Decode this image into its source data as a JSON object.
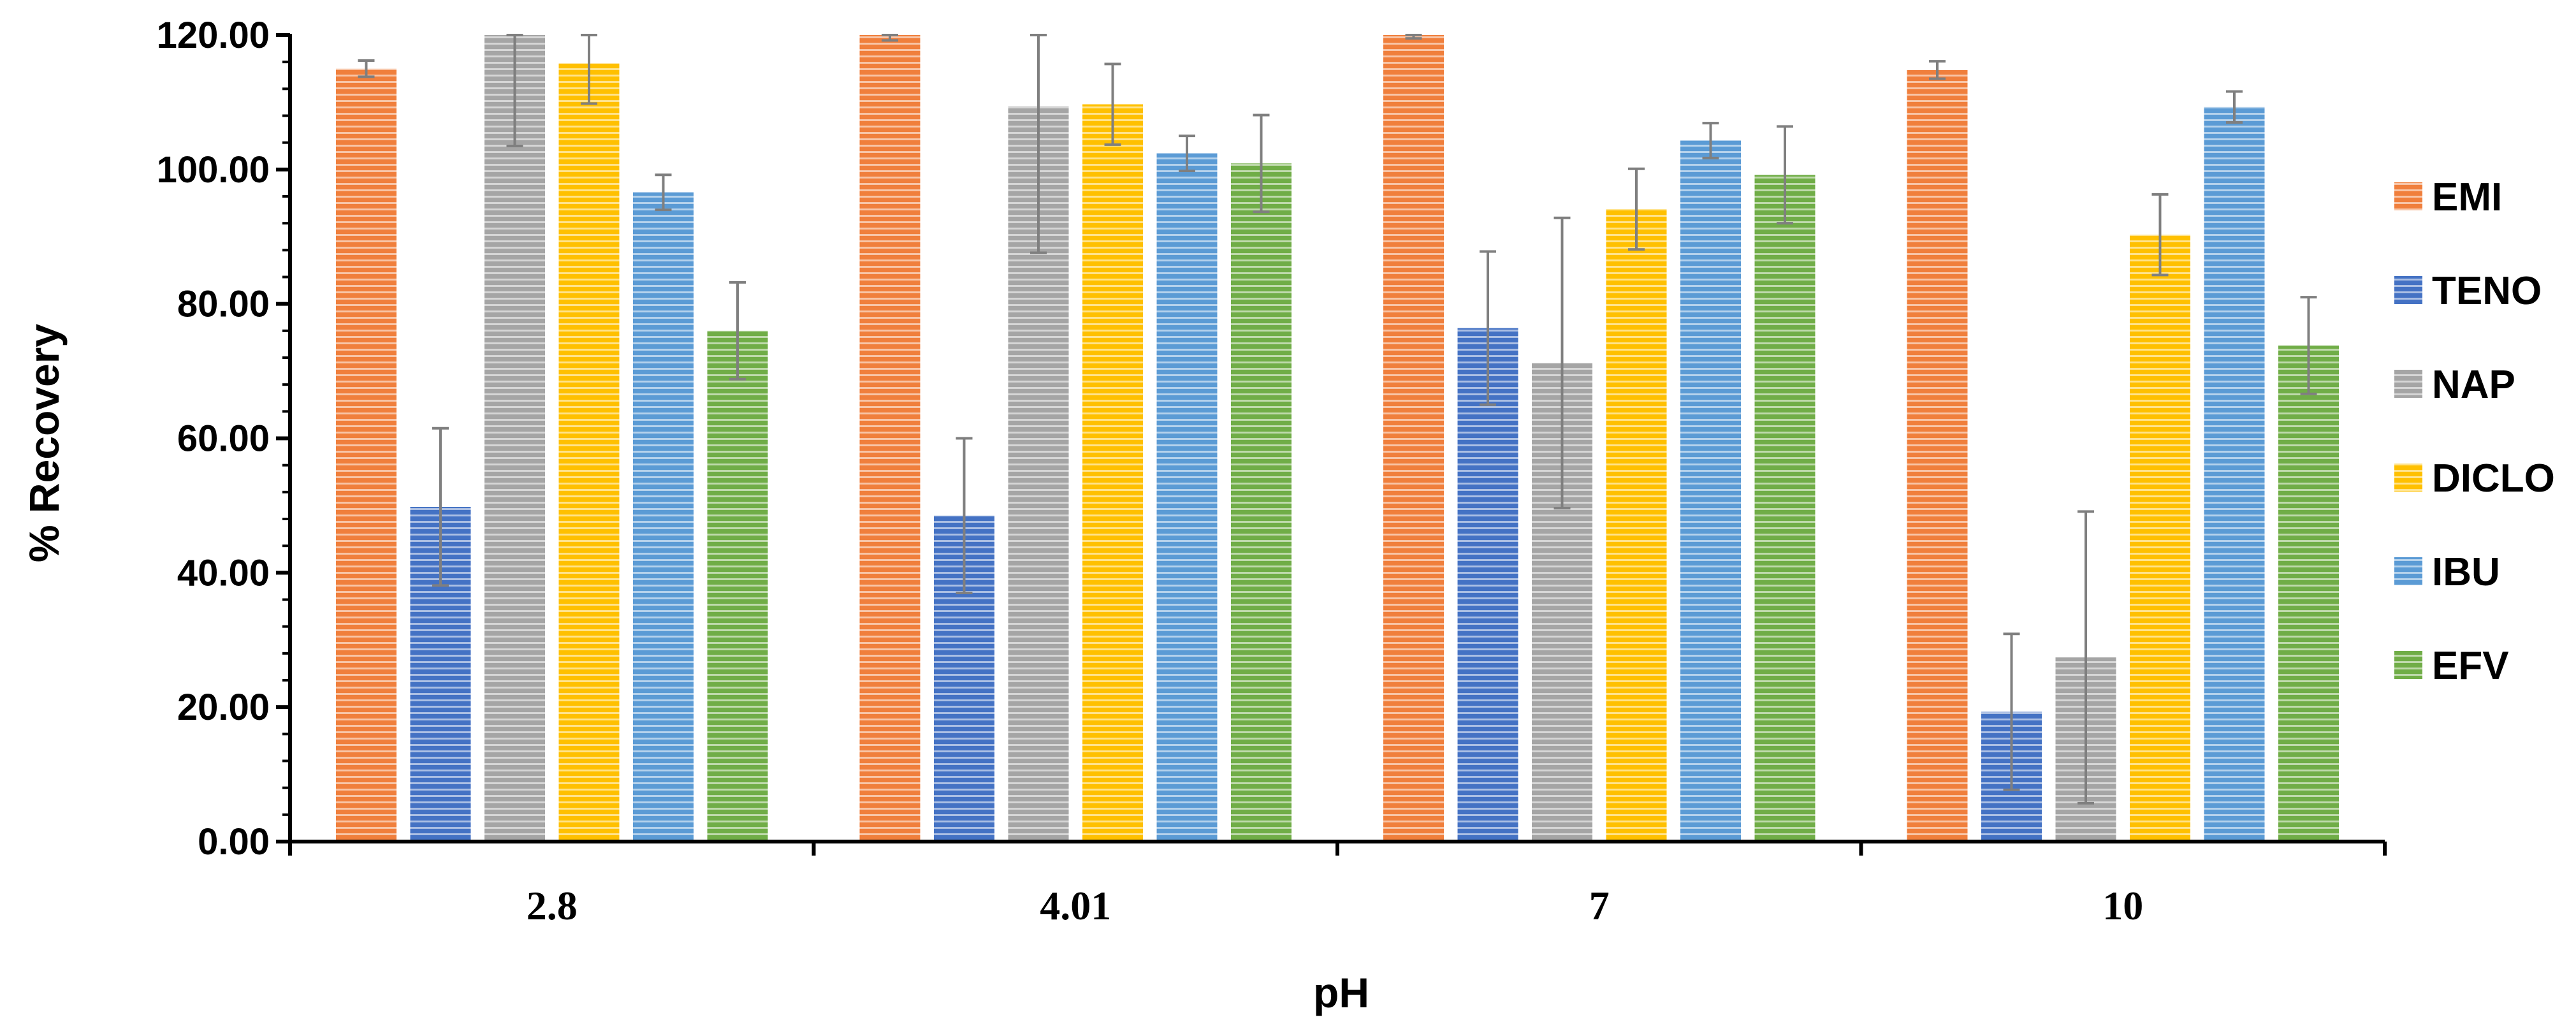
{
  "chart_data": {
    "type": "bar",
    "title": "",
    "xlabel": "pH",
    "ylabel": "% Recovery",
    "ylim": [
      0,
      120
    ],
    "ytick_step": 20,
    "ytick_labels": [
      "0.00",
      "20.00",
      "40.00",
      "60.00",
      "80.00",
      "100.00",
      "120.00"
    ],
    "grid": false,
    "legend_position": "right",
    "categories": [
      "2.8",
      "4.01",
      "7",
      "10"
    ],
    "series": [
      {
        "name": "EMI",
        "color": "#F07F3C",
        "values": [
          115,
          120,
          120,
          114.8
        ],
        "errors": [
          1.2,
          0.8,
          0.5,
          1.3
        ]
      },
      {
        "name": "TENO",
        "color": "#4472C4",
        "values": [
          49.8,
          48.5,
          76.4,
          19.3
        ],
        "errors": [
          11.7,
          11.5,
          11.4,
          11.6
        ]
      },
      {
        "name": "NAP",
        "color": "#A5A5A5",
        "values": [
          120,
          109.4,
          71.2,
          27.4
        ],
        "errors": [
          16.5,
          21.8,
          21.6,
          21.7
        ]
      },
      {
        "name": "DICLO",
        "color": "#FFC000",
        "values": [
          115.8,
          109.7,
          94.1,
          90.3
        ],
        "errors": [
          6.0,
          6.0,
          6.0,
          6.0
        ]
      },
      {
        "name": "IBU",
        "color": "#5B9BD5",
        "values": [
          96.6,
          102.4,
          104.3,
          109.3
        ],
        "errors": [
          2.6,
          2.6,
          2.6,
          2.3
        ]
      },
      {
        "name": "EFV",
        "color": "#70AD47",
        "values": [
          76.0,
          100.9,
          99.2,
          73.8
        ],
        "errors": [
          7.2,
          7.2,
          7.2,
          7.2
        ]
      }
    ]
  }
}
